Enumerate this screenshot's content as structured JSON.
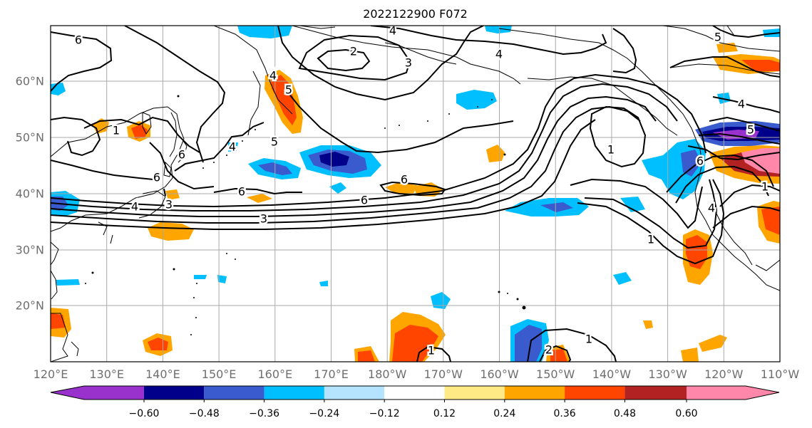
{
  "title": "2022122900 F072",
  "map": {
    "lon_labels": [
      "120°E",
      "130°E",
      "140°E",
      "150°E",
      "160°E",
      "170°E",
      "180°W",
      "170°W",
      "160°W",
      "150°W",
      "140°W",
      "130°W",
      "120°W",
      "110°W"
    ],
    "lat_labels": [
      "20°N",
      "30°N",
      "40°N",
      "50°N",
      "60°N"
    ],
    "contour_labels": [
      {
        "text": "6",
        "id": "c1"
      },
      {
        "text": "4",
        "id": "c2"
      },
      {
        "text": "2",
        "id": "c3"
      },
      {
        "text": "3",
        "id": "c4"
      },
      {
        "text": "4",
        "id": "c5"
      },
      {
        "text": "5",
        "id": "c6"
      },
      {
        "text": "4",
        "id": "c7"
      },
      {
        "text": "1",
        "id": "c8"
      },
      {
        "text": "5",
        "id": "c9"
      },
      {
        "text": "6",
        "id": "c10"
      },
      {
        "text": "6",
        "id": "c11"
      },
      {
        "text": "6",
        "id": "c12"
      },
      {
        "text": "6",
        "id": "c13"
      },
      {
        "text": "4",
        "id": "c14"
      },
      {
        "text": "3",
        "id": "c15"
      },
      {
        "text": "3",
        "id": "c16"
      },
      {
        "text": "1",
        "id": "c17"
      },
      {
        "text": "6",
        "id": "c18"
      },
      {
        "text": "5",
        "id": "c19"
      },
      {
        "text": "4",
        "id": "c20"
      },
      {
        "text": "1",
        "id": "c21"
      },
      {
        "text": "1",
        "id": "c22"
      },
      {
        "text": "1",
        "id": "c23"
      },
      {
        "text": "2",
        "id": "c24"
      },
      {
        "text": "1",
        "id": "c25"
      },
      {
        "text": "5",
        "id": "c26"
      },
      {
        "text": "4",
        "id": "c27"
      },
      {
        "text": "6",
        "id": "c28"
      },
      {
        "text": "4",
        "id": "c29"
      }
    ]
  },
  "colorbar": {
    "tick_labels": [
      "−0.60",
      "−0.48",
      "−0.36",
      "−0.24",
      "−0.12",
      "0.12",
      "0.24",
      "0.36",
      "0.48",
      "0.60"
    ],
    "colors": [
      "#9932cc",
      "#00008b",
      "#3a5bcd",
      "#00bfff",
      "#b4e4ff",
      "#ffffff",
      "#ffea86",
      "#ffa500",
      "#ff4500",
      "#b22222",
      "#ff88aa"
    ]
  },
  "palette": {
    "purple": "#9932cc",
    "navy": "#00008b",
    "blue": "#3a5bcd",
    "cyan": "#00bfff",
    "lightcyan": "#b4e4ff",
    "yellow": "#ffea86",
    "orange": "#ffa500",
    "redorange": "#ff4500",
    "darkred": "#b22222",
    "pink": "#ff88aa"
  }
}
